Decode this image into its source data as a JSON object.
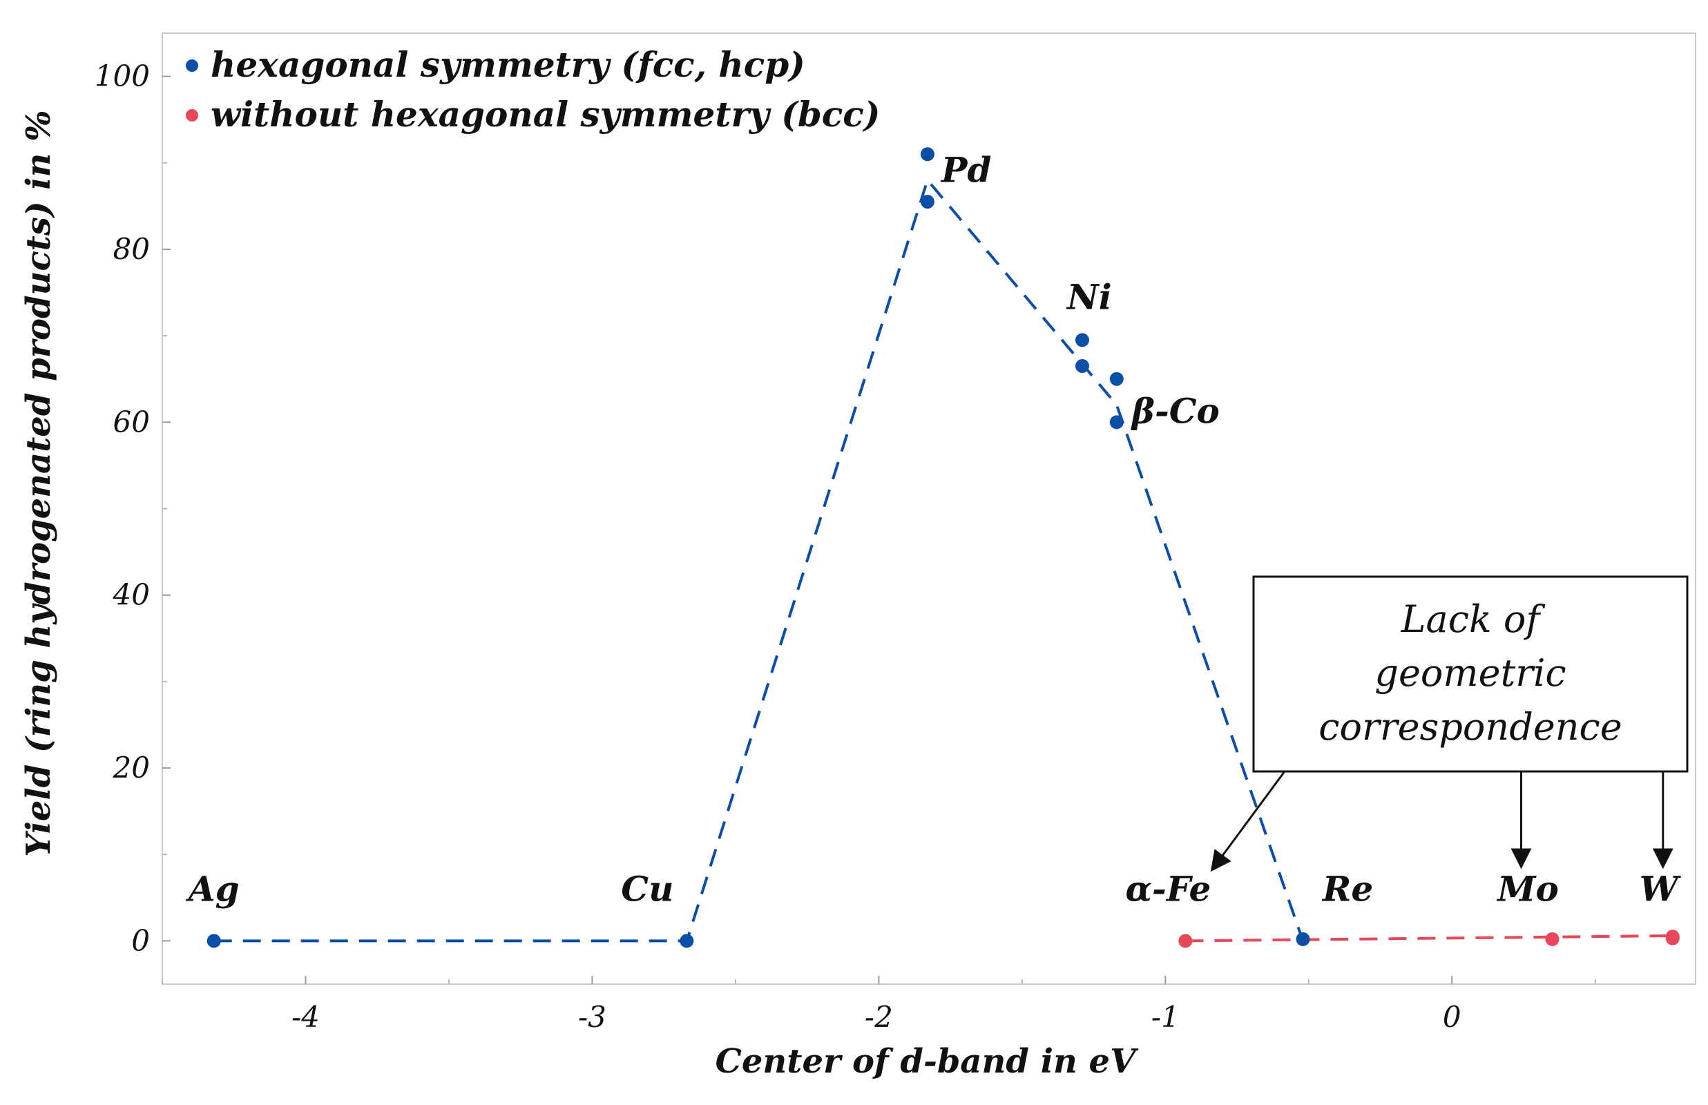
{
  "chart_data": {
    "type": "scatter",
    "title": "",
    "xlabel": "Center of d-band in eV",
    "ylabel": "Yield (ring hydrogenated products) in %",
    "xlim": [
      -4.5,
      0.85
    ],
    "ylim": [
      -5,
      105
    ],
    "xticks": [
      -4,
      -3,
      -2,
      -1,
      0
    ],
    "yticks": [
      0,
      20,
      40,
      60,
      80,
      100
    ],
    "grid": false,
    "legend_position": "top-left",
    "colors": {
      "hexagonal": "#0b4ea8",
      "non_hexagonal": "#e8475a"
    },
    "series": [
      {
        "name": "hexagonal symmetry (fcc, hcp)",
        "marker": "circle",
        "points": [
          {
            "x": -4.32,
            "y": 0
          },
          {
            "x": -2.67,
            "y": 0
          },
          {
            "x": -1.83,
            "y": 91
          },
          {
            "x": -1.83,
            "y": 85.5
          },
          {
            "x": -1.29,
            "y": 69.5
          },
          {
            "x": -1.29,
            "y": 66.5
          },
          {
            "x": -1.17,
            "y": 65
          },
          {
            "x": -1.17,
            "y": 60
          },
          {
            "x": -0.52,
            "y": 0.2
          }
        ]
      },
      {
        "name": "without hexagonal symmetry (bcc)",
        "marker": "circle",
        "points": [
          {
            "x": -0.93,
            "y": 0
          },
          {
            "x": 0.35,
            "y": 0.2
          },
          {
            "x": 0.77,
            "y": 0.5
          },
          {
            "x": 0.77,
            "y": 0.3
          }
        ]
      }
    ],
    "trend_lines": [
      {
        "series": "hexagonal symmetry (fcc, hcp)",
        "style": "dashed",
        "points": [
          {
            "x": -4.32,
            "y": 0
          },
          {
            "x": -2.67,
            "y": 0
          },
          {
            "x": -1.83,
            "y": 88
          },
          {
            "x": -1.17,
            "y": 62
          },
          {
            "x": -0.52,
            "y": 0
          }
        ]
      },
      {
        "series": "without hexagonal symmetry (bcc)",
        "style": "dashed",
        "points": [
          {
            "x": -0.93,
            "y": 0
          },
          {
            "x": 0.77,
            "y": 0.6
          }
        ]
      }
    ],
    "point_labels": [
      {
        "text": "Ag",
        "x": -4.32,
        "y": 0
      },
      {
        "text": "Cu",
        "x": -2.67,
        "y": 0
      },
      {
        "text": "Pd",
        "x": -1.83,
        "y": 91
      },
      {
        "text": "Ni",
        "x": -1.29,
        "y": 69.5
      },
      {
        "text": "β-Co",
        "x": -1.17,
        "y": 62
      },
      {
        "text": "α-Fe",
        "x": -0.93,
        "y": 0
      },
      {
        "text": "Re",
        "x": -0.52,
        "y": 0
      },
      {
        "text": "Mo",
        "x": 0.35,
        "y": 0
      },
      {
        "text": "W",
        "x": 0.77,
        "y": 0
      }
    ],
    "annotation": {
      "lines": [
        "Lack of",
        "geometric",
        "correspondence"
      ],
      "arrows_to": [
        "α-Fe",
        "Mo",
        "W"
      ]
    }
  }
}
